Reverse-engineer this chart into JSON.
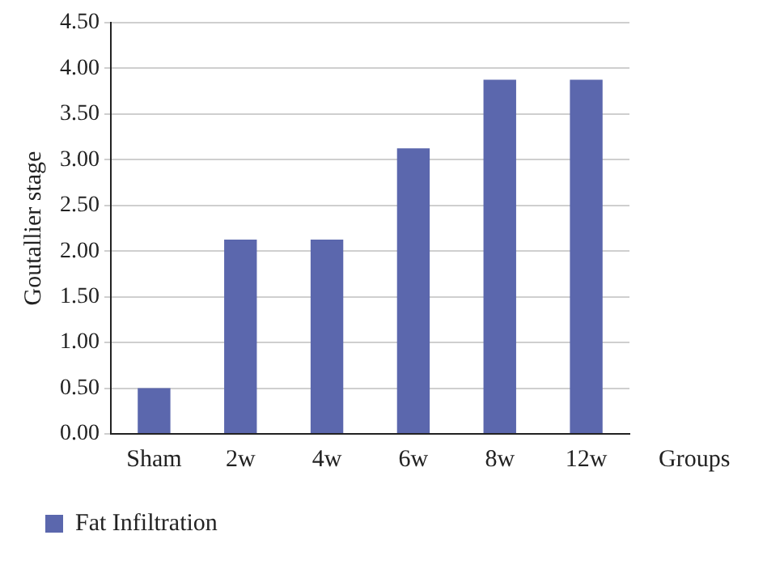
{
  "chart_data": {
    "type": "bar",
    "xlabel": "Groups",
    "ylabel": "Goutallier stage",
    "categories": [
      "Sham",
      "2w",
      "4w",
      "6w",
      "8w",
      "12w"
    ],
    "series": [
      {
        "name": "Fat Infiltration",
        "color": "#5b67ad",
        "values": [
          0.5,
          2.125,
          2.125,
          3.125,
          3.875,
          3.875
        ]
      }
    ],
    "ylim": [
      0,
      4.5
    ],
    "yticks": [
      {
        "value": 0,
        "label": "0.00"
      },
      {
        "value": 0.5,
        "label": "0.50"
      },
      {
        "value": 1,
        "label": "1.00"
      },
      {
        "value": 1.5,
        "label": "1.50"
      },
      {
        "value": 2,
        "label": "2.00"
      },
      {
        "value": 2.5,
        "label": "2.50"
      },
      {
        "value": 3,
        "label": "3.00"
      },
      {
        "value": 3.5,
        "label": "3.50"
      },
      {
        "value": 4,
        "label": "4.00"
      },
      {
        "value": 4.5,
        "label": "4.50"
      }
    ],
    "grid": "y",
    "legend": "bottom left"
  }
}
